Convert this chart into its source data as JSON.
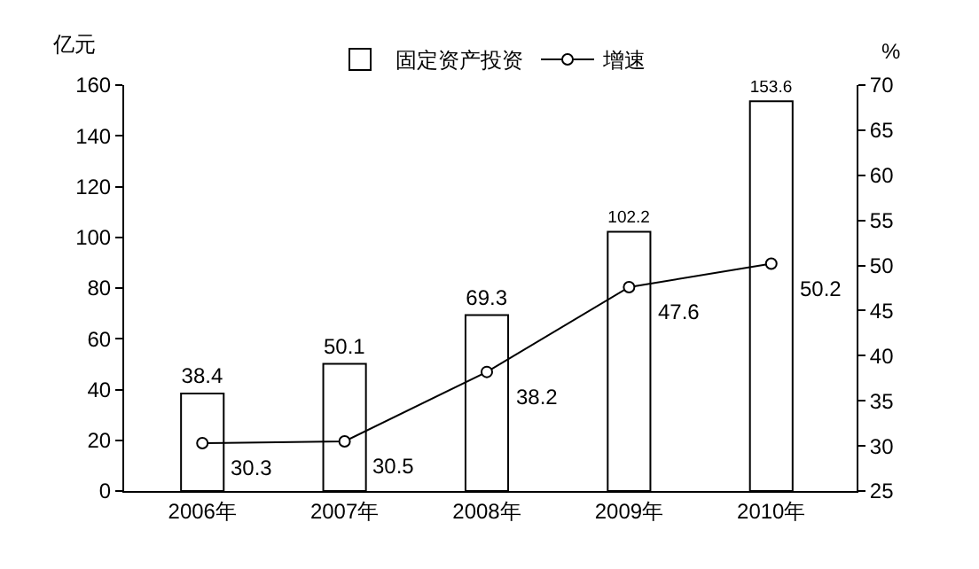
{
  "chart_data": {
    "type": "bar",
    "categories": [
      "2006年",
      "2007年",
      "2008年",
      "2009年",
      "2010年"
    ],
    "ylabel": "亿元",
    "y2label": "%",
    "ylim": [
      0,
      160
    ],
    "yticks": [
      0,
      20,
      40,
      60,
      80,
      100,
      120,
      140,
      160
    ],
    "y2lim": [
      25,
      70
    ],
    "y2ticks": [
      25,
      30,
      35,
      40,
      45,
      50,
      55,
      60,
      65,
      70
    ],
    "data_labels": true,
    "legend": "top",
    "series": [
      {
        "name": "固定资产投资",
        "color": "#ffffff",
        "values": [
          38.4,
          50.1,
          69.3,
          102.2,
          153.6
        ]
      },
      {
        "name": "增速",
        "type": "line",
        "axis": "y2",
        "color": "#000000",
        "marker": "circle",
        "line_style": "solid",
        "values": [
          30.3,
          30.5,
          38.2,
          47.6,
          50.2
        ]
      }
    ]
  }
}
